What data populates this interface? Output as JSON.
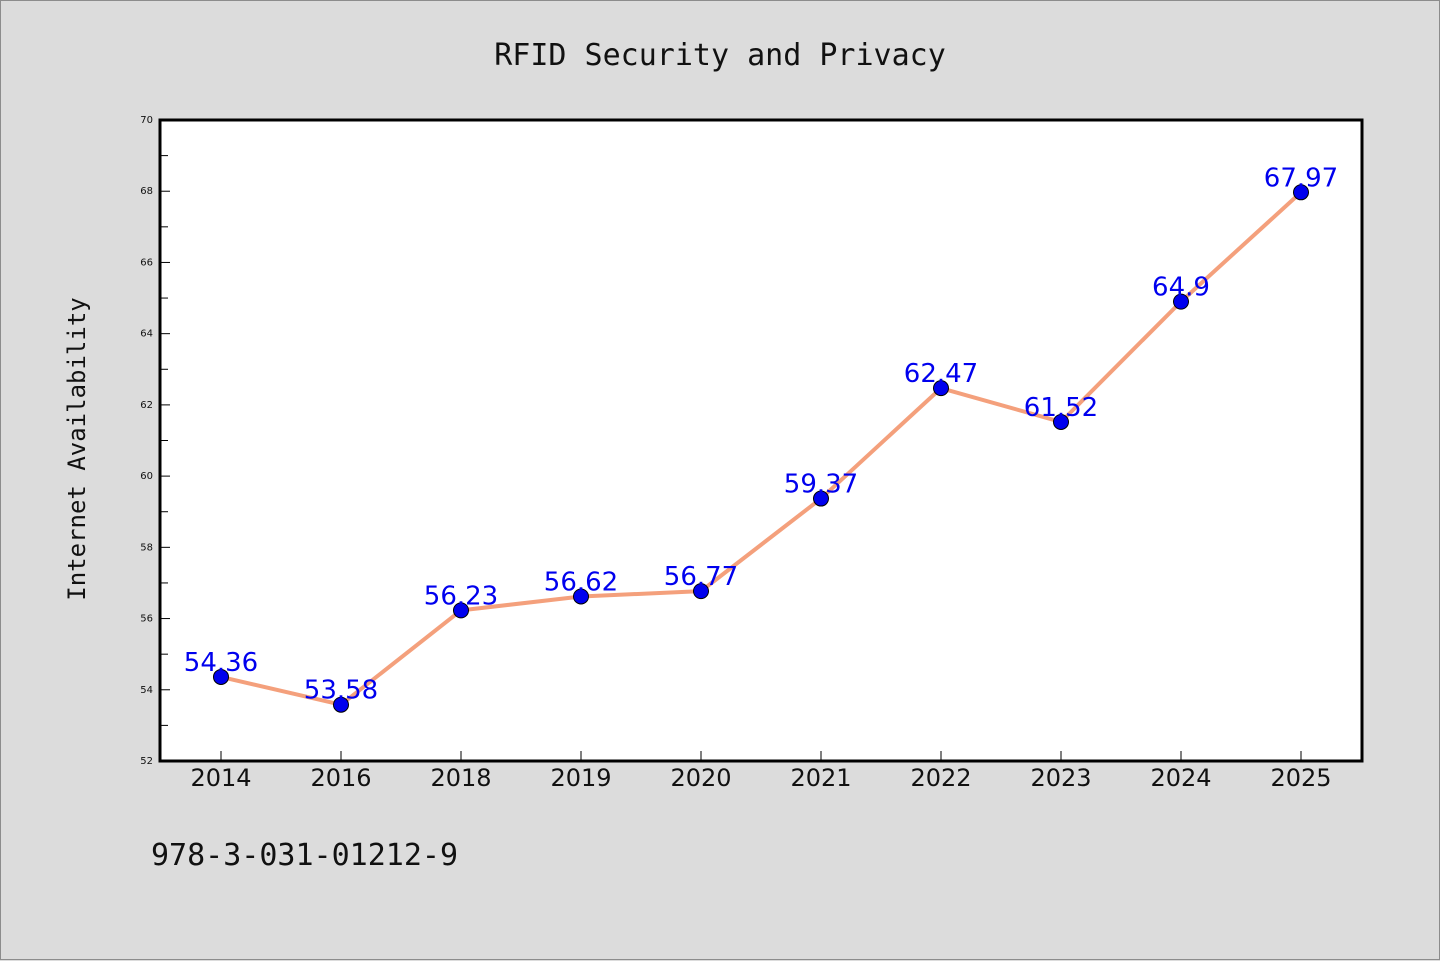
{
  "chart_data": {
    "type": "line",
    "title": "RFID Security and Privacy",
    "xlabel": "",
    "ylabel": "Internet Availability",
    "categories": [
      "2014",
      "2016",
      "2018",
      "2019",
      "2020",
      "2021",
      "2022",
      "2023",
      "2024",
      "2025"
    ],
    "series": [
      {
        "values": [
          54.36,
          53.58,
          56.23,
          56.62,
          56.77,
          59.37,
          62.47,
          61.52,
          64.9,
          67.97
        ],
        "labels": [
          "54.36",
          "53.58",
          "56.23",
          "56.62",
          "56.77",
          "59.37",
          "62.47",
          "61.52",
          "64.9",
          "67.97"
        ],
        "line_color": "#f4a07c",
        "marker_color": "#0000ee"
      }
    ],
    "ylim": [
      52,
      70
    ],
    "yticks": [
      "52",
      "54",
      "56",
      "58",
      "60",
      "62",
      "64",
      "66",
      "68",
      "70"
    ],
    "grid": false,
    "legend": "none",
    "background_color": "#dcdcdc",
    "plot_background_color": "#ffffff",
    "footer_text": "978-3-031-01212-9"
  }
}
